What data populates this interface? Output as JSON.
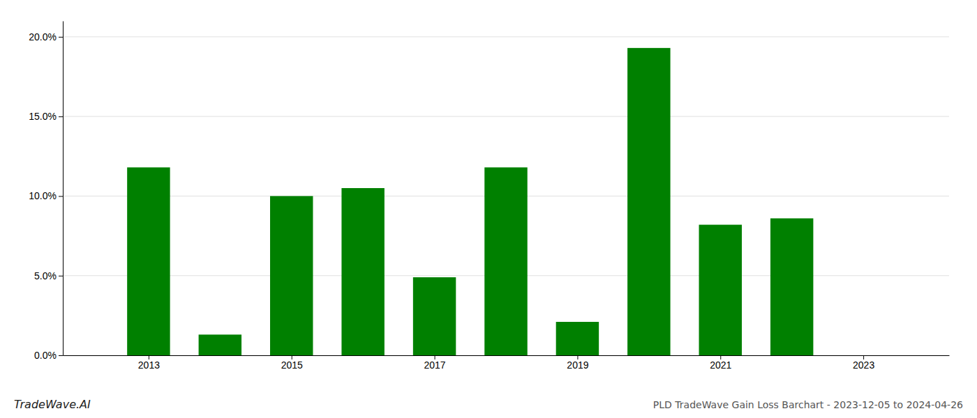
{
  "chart_data": {
    "type": "bar",
    "title": "PLD TradeWave Gain Loss Barchart - 2023-12-05 to 2024-04-26",
    "annotations": [
      "TradeWave.AI"
    ],
    "x": [
      2013,
      2014,
      2015,
      2016,
      2017,
      2018,
      2019,
      2020,
      2021,
      2022,
      2023
    ],
    "values": [
      0.118,
      0.013,
      0.1,
      0.105,
      0.049,
      0.118,
      0.021,
      0.193,
      0.082,
      0.086,
      0.0
    ],
    "color": "#008000",
    "xlim": [
      2011.8,
      2024.2
    ],
    "xticks": [
      2013,
      2015,
      2017,
      2019,
      2021,
      2023
    ],
    "ylim": [
      0,
      0.21
    ],
    "yticks": [
      {
        "value": 0.0,
        "label": "0.0%"
      },
      {
        "value": 0.05,
        "label": "5.0%"
      },
      {
        "value": 0.1,
        "label": "10.0%"
      },
      {
        "value": 0.15,
        "label": "15.0%"
      },
      {
        "value": 0.2,
        "label": "20.0%"
      }
    ],
    "grid": true
  }
}
